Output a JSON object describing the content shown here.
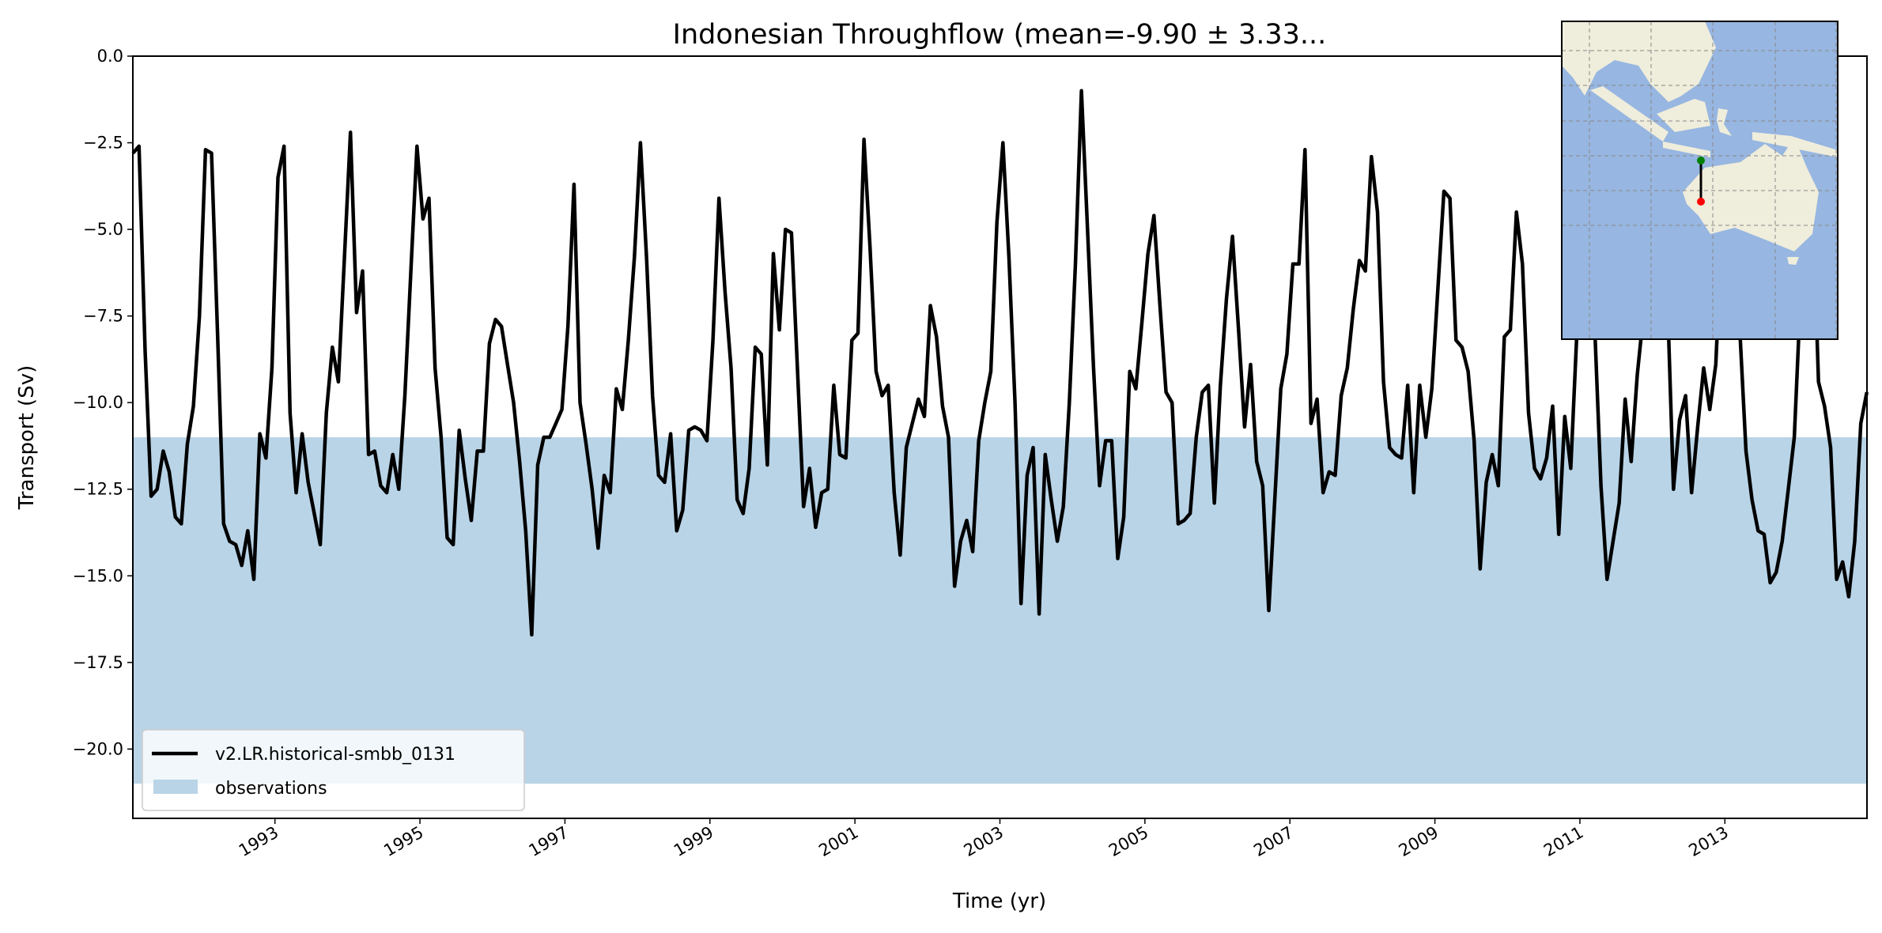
{
  "chart_data": {
    "type": "line",
    "title": "Indonesian Throughflow (mean=-9.90 ± 3.33...",
    "xlabel": "Time (yr)",
    "ylabel": "Transport (Sv)",
    "xlim": [
      1991.04,
      2014.96
    ],
    "ylim": [
      -22,
      0
    ],
    "x_start": 1991.042,
    "x_step": 0.08333,
    "xticks": [
      1993,
      1995,
      1997,
      1999,
      2001,
      2003,
      2005,
      2007,
      2009,
      2011,
      2013
    ],
    "xtick_labels": [
      "1993",
      "1995",
      "1997",
      "1999",
      "2001",
      "2003",
      "2005",
      "2007",
      "2009",
      "2011",
      "2013"
    ],
    "yticks": [
      0,
      -2.5,
      -5,
      -7.5,
      -10,
      -12.5,
      -15,
      -17.5,
      -20
    ],
    "ytick_labels": [
      "0.0",
      "−2.5",
      "−5.0",
      "−7.5",
      "−10.0",
      "−12.5",
      "−15.0",
      "−17.5",
      "−20.0"
    ],
    "grid": false,
    "legend_position": "lower-left",
    "observations_band": {
      "name": "observations",
      "min": -21,
      "max": -11,
      "color": "#b9d4e7"
    },
    "series": [
      {
        "name": "v2.LR.historical-smbb_0131",
        "color": "#000000",
        "values": [
          -2.8,
          -2.6,
          -8.5,
          -12.7,
          -12.5,
          -11.4,
          -12.0,
          -13.3,
          -13.5,
          -11.2,
          -10.1,
          -7.5,
          -2.7,
          -2.8,
          -8.0,
          -13.5,
          -14.0,
          -14.1,
          -14.7,
          -13.7,
          -15.1,
          -10.9,
          -11.6,
          -9.0,
          -3.5,
          -2.6,
          -10.3,
          -12.6,
          -10.9,
          -12.3,
          -13.2,
          -14.1,
          -10.3,
          -8.4,
          -9.4,
          -5.8,
          -2.2,
          -7.4,
          -6.2,
          -11.5,
          -11.4,
          -12.4,
          -12.6,
          -11.5,
          -12.5,
          -9.8,
          -6.2,
          -2.6,
          -4.7,
          -4.1,
          -9.0,
          -11.0,
          -13.9,
          -14.1,
          -10.8,
          -12.2,
          -13.4,
          -11.4,
          -11.4,
          -8.3,
          -7.6,
          -7.8,
          -8.9,
          -10.0,
          -11.7,
          -13.7,
          -16.7,
          -11.8,
          -11.0,
          -11.0,
          -10.6,
          -10.2,
          -7.8,
          -3.7,
          -10.0,
          -11.2,
          -12.5,
          -14.2,
          -12.1,
          -12.6,
          -9.6,
          -10.2,
          -8.2,
          -5.8,
          -2.5,
          -5.8,
          -9.8,
          -12.1,
          -12.3,
          -10.9,
          -13.7,
          -13.1,
          -10.8,
          -10.7,
          -10.8,
          -11.1,
          -8.2,
          -4.1,
          -6.8,
          -9.0,
          -12.8,
          -13.2,
          -11.9,
          -8.4,
          -8.6,
          -11.8,
          -5.7,
          -7.9,
          -5.0,
          -5.1,
          -9.1,
          -13.0,
          -11.9,
          -13.6,
          -12.6,
          -12.5,
          -9.5,
          -11.5,
          -11.6,
          -8.2,
          -8.0,
          -2.4,
          -5.5,
          -9.1,
          -9.8,
          -9.5,
          -12.6,
          -14.4,
          -11.3,
          -10.6,
          -9.9,
          -10.4,
          -7.2,
          -8.1,
          -10.1,
          -11.0,
          -15.3,
          -14.0,
          -13.4,
          -14.3,
          -11.1,
          -10.0,
          -9.1,
          -4.8,
          -2.5,
          -5.8,
          -10.0,
          -15.8,
          -12.1,
          -11.3,
          -16.1,
          -11.5,
          -12.8,
          -14.0,
          -13.0,
          -10.0,
          -6.0,
          -1.0,
          -5.0,
          -9.0,
          -12.4,
          -11.1,
          -11.1,
          -14.5,
          -13.3,
          -9.1,
          -9.6,
          -7.7,
          -5.7,
          -4.6,
          -7.2,
          -9.7,
          -10.0,
          -13.5,
          -13.4,
          -13.2,
          -11.0,
          -9.7,
          -9.5,
          -12.9,
          -9.5,
          -7.0,
          -5.2,
          -7.9,
          -10.7,
          -8.9,
          -11.7,
          -12.4,
          -16.0,
          -12.8,
          -9.6,
          -8.6,
          -6.0,
          -6.0,
          -2.7,
          -10.6,
          -9.9,
          -12.6,
          -12.0,
          -12.1,
          -9.8,
          -9.0,
          -7.3,
          -5.9,
          -6.2,
          -2.9,
          -4.5,
          -9.4,
          -11.3,
          -11.5,
          -11.6,
          -9.5,
          -12.6,
          -9.5,
          -11.0,
          -9.6,
          -6.7,
          -3.9,
          -4.1,
          -8.2,
          -8.4,
          -9.1,
          -11.1,
          -14.8,
          -12.3,
          -11.5,
          -12.4,
          -8.1,
          -7.9,
          -4.5,
          -6.0,
          -10.3,
          -11.9,
          -12.2,
          -11.6,
          -10.1,
          -13.8,
          -10.4,
          -11.9,
          -8.0,
          -3.0,
          -2.0,
          -8.0,
          -12.4,
          -15.1,
          -14.0,
          -12.9,
          -9.9,
          -11.7,
          -9.2,
          -7.5,
          -5.0,
          -2.0,
          -2.0,
          -7.0,
          -12.5,
          -10.5,
          -9.8,
          -12.6,
          -10.7,
          -9.0,
          -10.2,
          -8.9,
          -5.0,
          -2.0,
          -4.0,
          -8.0,
          -11.4,
          -12.8,
          -13.7,
          -13.8,
          -15.2,
          -14.9,
          -14.0,
          -12.5,
          -11.0,
          -7.0,
          -3.0,
          -4.0,
          -9.4,
          -10.1,
          -11.3,
          -15.1,
          -14.6,
          -15.6,
          -14.0,
          -10.6,
          -9.7
        ]
      }
    ],
    "inset_map": {
      "land_color": "#efeddb",
      "ocean_color": "#97b6e1",
      "section_start_color": "#008000",
      "section_end_color": "#ff0000"
    }
  }
}
